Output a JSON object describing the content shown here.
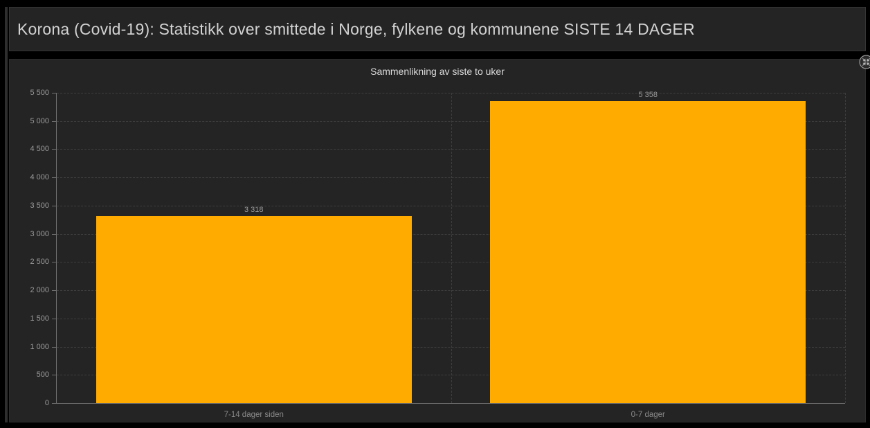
{
  "header": {
    "title": "Korona (Covid-19): Statistikk over smittede i Norge, fylkene og kommunene SISTE 14 DAGER"
  },
  "panel": {
    "title": "Sammenlikning av siste to uker",
    "restore_icon": "collapse-arrows-icon"
  },
  "colors": {
    "background": "#000000",
    "panel": "#242424",
    "bar": "#ffab00",
    "axis": "#6f6f6f",
    "gridline": "#3e3e3e",
    "text_primary": "#d2d2d2",
    "text_muted": "#9a9a9a"
  },
  "chart_data": {
    "type": "bar",
    "title": "Sammenlikning av siste to uker",
    "categories": [
      "7-14 dager siden",
      "0-7 dager"
    ],
    "values": [
      3318,
      5358
    ],
    "value_labels": [
      "3 318",
      "5 358"
    ],
    "xlabel": "",
    "ylabel": "",
    "ylim": [
      0,
      5500
    ],
    "ytick_step": 500,
    "ytick_labels": [
      "0",
      "500",
      "1 000",
      "1 500",
      "2 000",
      "2 500",
      "3 000",
      "3 500",
      "4 000",
      "4 500",
      "5 000",
      "5 500"
    ],
    "grid": true,
    "legend": "none",
    "bar_color": "#ffab00"
  }
}
